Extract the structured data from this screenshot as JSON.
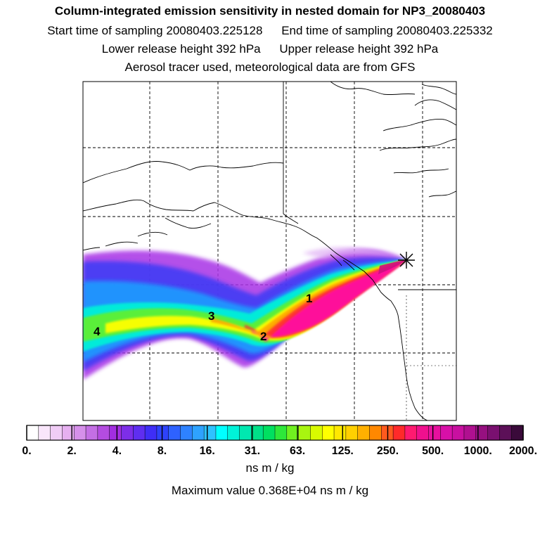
{
  "header": {
    "title": "Column-integrated emission sensitivity in nested domain for NP3_20080403",
    "start_label": "Start time of sampling",
    "start_value": "20080403.225128",
    "end_label": "End time of sampling",
    "end_value": "20080403.225332",
    "lower_label": "Lower release height",
    "lower_value": "392 hPa",
    "upper_label": "Upper release height",
    "upper_value": "392 hPa",
    "tracer_note": "Aerosol tracer used, meteorological data are from GFS"
  },
  "map": {
    "plume_labels": [
      "1",
      "2",
      "3",
      "4"
    ],
    "release_marker": "asterisk-release-point-icon"
  },
  "colorbar": {
    "tick_labels": [
      "0.",
      "2.",
      "4.",
      "8.",
      "16.",
      "31.",
      "63.",
      "125.",
      "250.",
      "500.",
      "1000.",
      "2000."
    ],
    "colors": [
      "#ffffff",
      "#f9e6fb",
      "#f0ccf6",
      "#e6b0f0",
      "#d690ea",
      "#c46fe4",
      "#b44ce0",
      "#a22ee0",
      "#7d2ee8",
      "#5f2ef0",
      "#3f2ef6",
      "#2e42fa",
      "#2e62ff",
      "#2e82ff",
      "#2ea2ff",
      "#2ec2ff",
      "#00ffff",
      "#00f2d8",
      "#00e8b0",
      "#00e088",
      "#00e060",
      "#2ee83a",
      "#70f020",
      "#a8f510",
      "#d8fa00",
      "#ffff00",
      "#ffe800",
      "#ffd000",
      "#ffb000",
      "#ff8800",
      "#ff5a1e",
      "#ff2a2a",
      "#ff1a70",
      "#f0108e",
      "#e6109e",
      "#d810a8",
      "#c810a0",
      "#b01090",
      "#961080",
      "#7a1070",
      "#5c1058",
      "#3a0a3a"
    ],
    "units": "ns m / kg",
    "max_label": "Maximum value",
    "max_value": "0.368E+04",
    "max_units": "ns m / kg"
  }
}
